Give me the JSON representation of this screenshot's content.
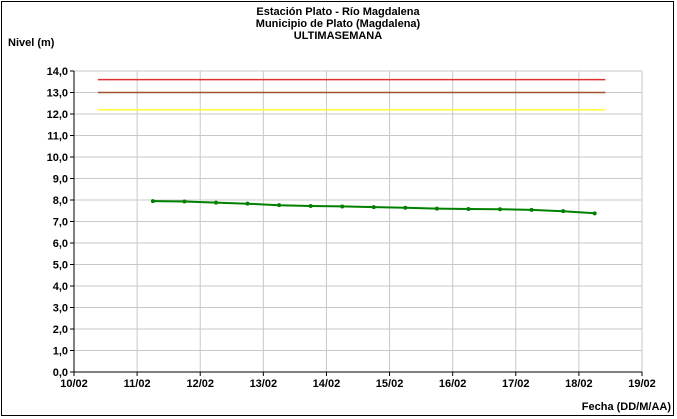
{
  "chart_data": {
    "type": "line",
    "title": [
      "Estación Plato - Río Magdalena",
      "Municipio de Plato (Magdalena)",
      "ULTIMASEMANA"
    ],
    "ylabel": "Nivel (m)",
    "xlabel": "Fecha (DD/M/AA)",
    "ylim": [
      0,
      14
    ],
    "yticks": [
      "0,0",
      "1,0",
      "2,0",
      "3,0",
      "4,0",
      "5,0",
      "6,0",
      "7,0",
      "8,0",
      "9,0",
      "10,0",
      "11,0",
      "12,0",
      "13,0",
      "14,0"
    ],
    "xlim": [
      0,
      9
    ],
    "xticks": [
      "10/02",
      "11/02",
      "12/02",
      "13/02",
      "14/02",
      "15/02",
      "16/02",
      "17/02",
      "18/02",
      "19/02"
    ],
    "grid": true,
    "thresholds": [
      {
        "value": 13.6,
        "color": "#e03030",
        "from": 0.38,
        "to": 8.42
      },
      {
        "value": 13.0,
        "color": "#a0522d",
        "from": 0.38,
        "to": 8.42
      },
      {
        "value": 12.2,
        "color": "#ffff33",
        "from": 0.38,
        "to": 8.42
      }
    ],
    "series": [
      {
        "color": "#008000",
        "x": [
          1.25,
          1.75,
          2.25,
          2.75,
          3.25,
          3.75,
          4.25,
          4.75,
          5.25,
          5.75,
          6.25,
          6.75,
          7.25,
          7.75,
          8.25
        ],
        "values": [
          7.95,
          7.93,
          7.88,
          7.83,
          7.76,
          7.72,
          7.7,
          7.67,
          7.64,
          7.6,
          7.58,
          7.57,
          7.54,
          7.48,
          7.38
        ]
      }
    ]
  }
}
